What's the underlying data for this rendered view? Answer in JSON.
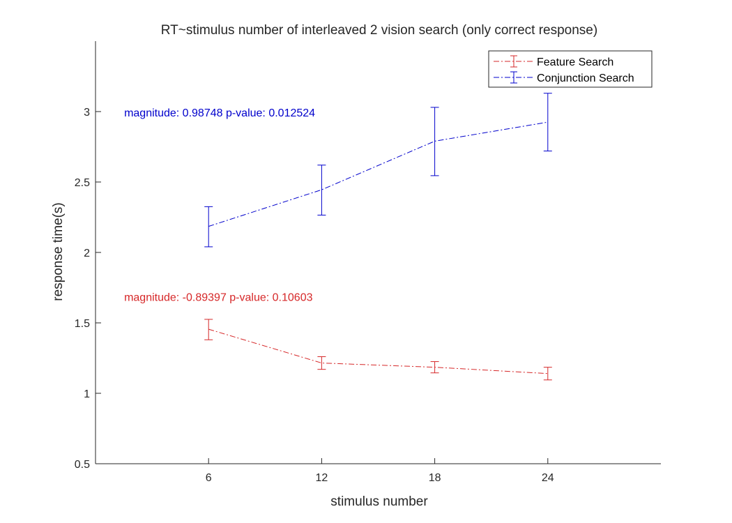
{
  "chart_data": {
    "type": "line",
    "title": "RT~stimulus number of interleaved 2 vision search (only correct response)",
    "xlabel": "stimulus number",
    "ylabel": "response time(s)",
    "x": [
      6,
      12,
      18,
      24
    ],
    "xlim": [
      0,
      30
    ],
    "ylim": [
      0.5,
      3.5
    ],
    "xticks": [
      6,
      12,
      18,
      24
    ],
    "yticks": [
      0.5,
      1,
      1.5,
      2,
      2.5,
      3
    ],
    "ytick_labels": [
      "0.5",
      "1",
      "1.5",
      "2",
      "2.5",
      "3"
    ],
    "xtick_labels": [
      "6",
      "12",
      "18",
      "24"
    ],
    "grid": false,
    "legend_position": "top-right",
    "series": [
      {
        "name": "Feature Search",
        "color": "#d62728",
        "line_style": "dash-dot",
        "values": [
          1.455,
          1.215,
          1.185,
          1.14
        ],
        "error_low": [
          1.38,
          1.17,
          1.145,
          1.095
        ],
        "error_high": [
          1.525,
          1.26,
          1.225,
          1.185
        ]
      },
      {
        "name": "Conjunction Search",
        "color": "#0000cc",
        "line_style": "dash-dot",
        "values": [
          2.185,
          2.445,
          2.79,
          2.925
        ],
        "error_low": [
          2.04,
          2.265,
          2.545,
          2.72
        ],
        "error_high": [
          2.325,
          2.62,
          3.03,
          3.13
        ]
      }
    ],
    "annotations": [
      {
        "text": "magnitude: 0.98748 p-value: 0.012524",
        "color": "#0000cc",
        "x": 2,
        "y": 3.0
      },
      {
        "text": "magnitude: -0.89397 p-value: 0.10603",
        "color": "#d62728",
        "x": 2,
        "y": 1.69
      }
    ]
  }
}
